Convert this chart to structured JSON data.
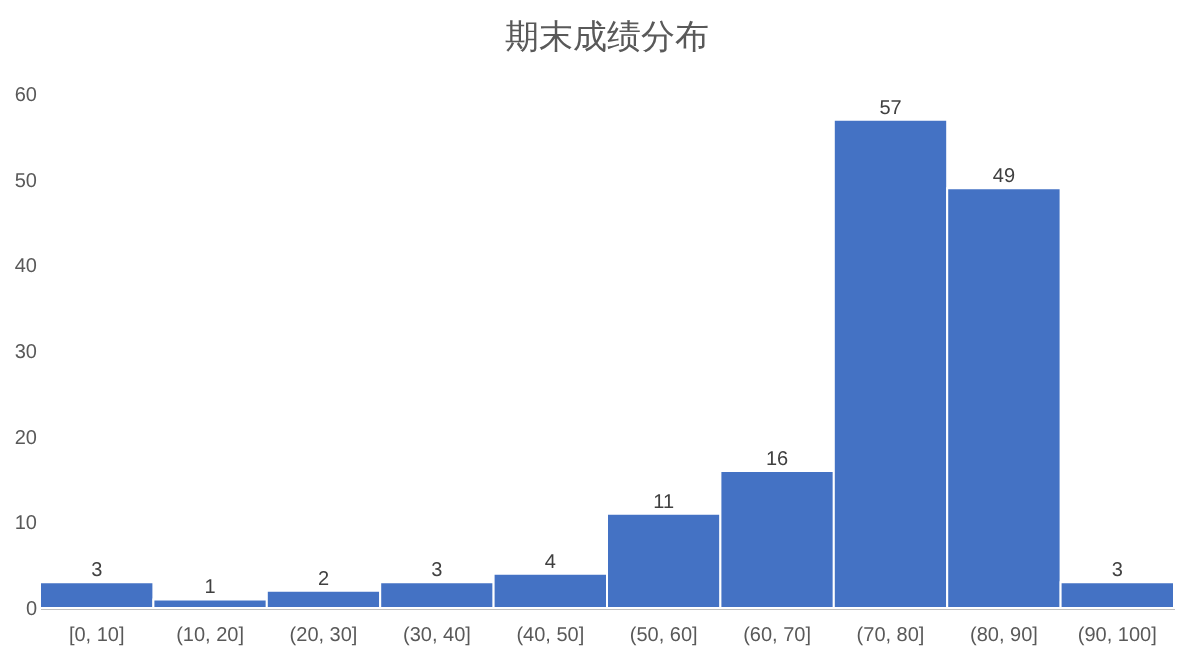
{
  "chart_data": {
    "type": "bar",
    "title": "期末成绩分布",
    "categories": [
      "[0, 10]",
      "(10, 20]",
      "(20, 30]",
      "(30, 40]",
      "(40, 50]",
      "(50, 60]",
      "(60, 70]",
      "(70, 80]",
      "(80, 90]",
      "(90, 100]"
    ],
    "values": [
      3,
      1,
      2,
      3,
      4,
      11,
      16,
      57,
      49,
      3
    ],
    "color": "#4472c4",
    "ylim": [
      0,
      60
    ],
    "yticks": [
      0,
      10,
      20,
      30,
      40,
      50,
      60
    ],
    "data_labels": true
  }
}
